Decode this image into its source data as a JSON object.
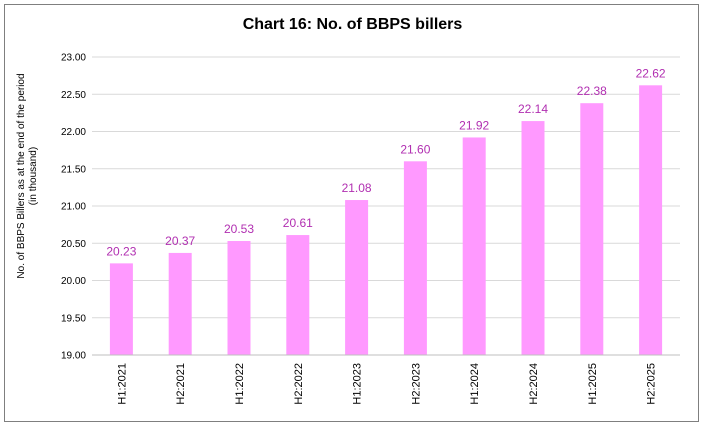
{
  "chart_data": {
    "type": "bar",
    "title": "Chart 16: No. of BBPS billers",
    "ylabel": [
      "No. of BBPS Billers as at the end of the period",
      "(in thousand)"
    ],
    "xlabel": "",
    "categories": [
      "H1:2021",
      "H2:2021",
      "H1:2022",
      "H2:2022",
      "H1:2023",
      "H2:2023",
      "H1:2024",
      "H2:2024",
      "H1:2025",
      "H2:2025"
    ],
    "values": [
      20.23,
      20.37,
      20.53,
      20.61,
      21.08,
      21.6,
      21.92,
      22.14,
      22.38,
      22.62
    ],
    "value_labels": [
      "20.23",
      "20.37",
      "20.53",
      "20.61",
      "21.08",
      "21.60",
      "21.92",
      "22.14",
      "22.38",
      "22.62"
    ],
    "ylim": [
      19.0,
      23.0
    ],
    "yticks": [
      "19.00",
      "19.50",
      "20.00",
      "20.50",
      "21.00",
      "21.50",
      "22.00",
      "22.50",
      "23.00"
    ],
    "ytick_values": [
      19.0,
      19.5,
      20.0,
      20.5,
      21.0,
      21.5,
      22.0,
      22.5,
      23.0
    ],
    "grid": true,
    "legend": "none",
    "colors": {
      "bar": "#ff99ff",
      "value_label": "#b12fb1",
      "grid": "#d9d9d9",
      "axis": "#bfbfbf"
    }
  }
}
